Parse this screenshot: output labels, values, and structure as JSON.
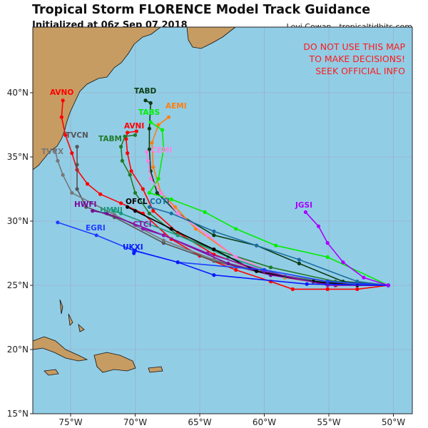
{
  "header": {
    "title": "Tropical Storm FLORENCE Model Track Guidance",
    "subtitle": "Initialized at 06z Sep 07 2018",
    "credit": "Levi Cowan - tropicaltidbits.com"
  },
  "warning": [
    "DO NOT USE THIS MAP",
    "TO MAKE DECISIONS!",
    "SEEK OFFICIAL INFO"
  ],
  "colors": {
    "ocean": "#92cde6",
    "land": "#c69c62",
    "warning": "#ff1a1a"
  },
  "axes": {
    "lon_ticks": [
      {
        "v": -75,
        "label": "75°W"
      },
      {
        "v": -70,
        "label": "70°W"
      },
      {
        "v": -65,
        "label": "65°W"
      },
      {
        "v": -60,
        "label": "60°W"
      },
      {
        "v": -55,
        "label": "55°W"
      },
      {
        "v": -50,
        "label": "50°W"
      }
    ],
    "lat_ticks": [
      {
        "v": 40,
        "label": "40°N"
      },
      {
        "v": 35,
        "label": "35°N"
      },
      {
        "v": 30,
        "label": "30°N"
      },
      {
        "v": 25,
        "label": "25°N"
      },
      {
        "v": 20,
        "label": "20°N"
      },
      {
        "v": 15,
        "label": "15°N"
      }
    ],
    "lon_range": [
      -78,
      -48.4
    ],
    "lat_range": [
      14.9,
      45.1
    ]
  },
  "tracks": [
    {
      "name": "AVNO",
      "color": "#ff0000",
      "pts": [
        [
          -50.4,
          25.0
        ],
        [
          -52.8,
          24.7
        ],
        [
          -55.1,
          24.7
        ],
        [
          -57.8,
          24.7
        ],
        [
          -59.5,
          25.3
        ],
        [
          -62.2,
          26.2
        ],
        [
          -65.0,
          27.3
        ],
        [
          -67.2,
          28.6
        ],
        [
          -69.4,
          30.6
        ],
        [
          -71.1,
          31.4
        ],
        [
          -72.7,
          32.1
        ],
        [
          -73.7,
          32.9
        ],
        [
          -74.5,
          34.0
        ],
        [
          -74.9,
          35.3
        ],
        [
          -75.4,
          36.7
        ],
        [
          -75.7,
          38.1
        ],
        [
          -75.6,
          39.4
        ]
      ]
    },
    {
      "name": "AVNI",
      "color": "#ff0000",
      "pts": [
        [
          -50.4,
          25.0
        ],
        [
          -55.1,
          25.3
        ],
        [
          -59.5,
          25.8
        ],
        [
          -63.9,
          27.4
        ],
        [
          -66.7,
          29.1
        ],
        [
          -68.6,
          30.8
        ],
        [
          -69.4,
          32.5
        ],
        [
          -70.3,
          33.9
        ],
        [
          -70.6,
          35.3
        ],
        [
          -70.7,
          36.4
        ],
        [
          -70.6,
          36.9
        ],
        [
          -69.9,
          37.0
        ]
      ]
    },
    {
      "name": "TABD",
      "color": "#0b3d12",
      "pts": [
        [
          -50.4,
          25.0
        ],
        [
          -53.9,
          25.3
        ],
        [
          -57.3,
          26.7
        ],
        [
          -60.6,
          28.1
        ],
        [
          -63.9,
          28.9
        ],
        [
          -66.7,
          30.6
        ],
        [
          -68.3,
          32.2
        ],
        [
          -68.8,
          33.9
        ],
        [
          -68.9,
          35.6
        ],
        [
          -68.9,
          37.2
        ],
        [
          -68.8,
          39.2
        ],
        [
          -69.2,
          39.4
        ]
      ]
    },
    {
      "name": "AEMI",
      "color": "#ff7f0e",
      "pts": [
        [
          -50.4,
          25.0
        ],
        [
          -54.4,
          25.0
        ],
        [
          -58.4,
          25.6
        ],
        [
          -62.2,
          27.2
        ],
        [
          -65.3,
          29.4
        ],
        [
          -66.9,
          31.1
        ],
        [
          -68.0,
          32.2
        ],
        [
          -68.6,
          34.2
        ],
        [
          -68.7,
          36.1
        ],
        [
          -68.2,
          37.5
        ],
        [
          -67.4,
          38.1
        ]
      ]
    },
    {
      "name": "TABS",
      "color": "#00ee00",
      "pts": [
        [
          -50.4,
          25.0
        ],
        [
          -55.1,
          27.2
        ],
        [
          -59.1,
          28.1
        ],
        [
          -62.2,
          29.4
        ],
        [
          -64.6,
          30.7
        ],
        [
          -67.2,
          31.7
        ],
        [
          -68.9,
          32.2
        ],
        [
          -68.2,
          33.3
        ],
        [
          -67.8,
          35.6
        ],
        [
          -67.9,
          37.1
        ],
        [
          -68.8,
          37.7
        ]
      ]
    },
    {
      "name": "TABM",
      "color": "#1f7a2a",
      "pts": [
        [
          -50.4,
          25.0
        ],
        [
          -54.5,
          25.3
        ],
        [
          -59.5,
          26.4
        ],
        [
          -63.9,
          27.8
        ],
        [
          -66.7,
          28.9
        ],
        [
          -68.9,
          30.6
        ],
        [
          -70.0,
          32.2
        ],
        [
          -70.4,
          33.6
        ],
        [
          -71.0,
          34.7
        ],
        [
          -71.1,
          35.8
        ],
        [
          -70.8,
          36.6
        ],
        [
          -70.0,
          36.7
        ]
      ]
    },
    {
      "name": "CEMI",
      "color": "#ff80e6",
      "pts": [
        [
          -50.4,
          25.0
        ],
        [
          -54.5,
          25.1
        ],
        [
          -58.9,
          25.8
        ],
        [
          -62.2,
          27.2
        ],
        [
          -64.4,
          28.9
        ],
        [
          -66.7,
          30.6
        ],
        [
          -68.0,
          32.2
        ],
        [
          -68.8,
          33.3
        ],
        [
          -69.0,
          34.7
        ],
        [
          -69.1,
          35.4
        ]
      ]
    },
    {
      "name": "TVCN",
      "color": "#555555",
      "pts": [
        [
          -50.4,
          25.0
        ],
        [
          -54.5,
          25.1
        ],
        [
          -59.5,
          25.8
        ],
        [
          -63.9,
          26.9
        ],
        [
          -67.8,
          28.3
        ],
        [
          -71.6,
          30.3
        ],
        [
          -73.8,
          31.1
        ],
        [
          -74.5,
          32.5
        ],
        [
          -74.5,
          34.4
        ],
        [
          -74.5,
          35.8
        ]
      ]
    },
    {
      "name": "TVCX",
      "color": "#777777",
      "pts": [
        [
          -50.4,
          25.0
        ],
        [
          -54.5,
          25.2
        ],
        [
          -59.5,
          25.9
        ],
        [
          -63.9,
          27.0
        ],
        [
          -67.8,
          28.5
        ],
        [
          -71.6,
          30.5
        ],
        [
          -74.9,
          32.2
        ],
        [
          -75.6,
          33.6
        ],
        [
          -76.0,
          34.7
        ],
        [
          -76.2,
          35.5
        ]
      ]
    },
    {
      "name": "HWFI",
      "color": "#7a0a9a",
      "pts": [
        [
          -50.4,
          25.0
        ],
        [
          -54.5,
          25.0
        ],
        [
          -59.5,
          25.8
        ],
        [
          -62.8,
          26.7
        ],
        [
          -67.8,
          28.9
        ],
        [
          -72.2,
          30.6
        ],
        [
          -73.3,
          30.8
        ]
      ]
    },
    {
      "name": "HMNI",
      "color": "#1a9a7a",
      "pts": [
        [
          -50.4,
          25.0
        ],
        [
          -54.5,
          25.1
        ],
        [
          -58.4,
          25.7
        ],
        [
          -62.8,
          27.2
        ],
        [
          -66.7,
          28.9
        ],
        [
          -71.1,
          30.6
        ],
        [
          -71.7,
          30.8
        ]
      ]
    },
    {
      "name": "OFCL",
      "color": "#000000",
      "pts": [
        [
          -50.4,
          25.0
        ],
        [
          -52.8,
          25.0
        ],
        [
          -56.2,
          25.3
        ],
        [
          -60.6,
          26.1
        ],
        [
          -63.9,
          27.8
        ],
        [
          -67.2,
          29.4
        ],
        [
          -70.0,
          30.8
        ],
        [
          -70.6,
          31.1
        ]
      ]
    },
    {
      "name": "COTI",
      "color": "#1a6fa0",
      "pts": [
        [
          -50.4,
          25.0
        ],
        [
          -52.8,
          25.3
        ],
        [
          -57.3,
          27.0
        ],
        [
          -60.6,
          28.1
        ],
        [
          -63.9,
          29.2
        ],
        [
          -67.2,
          30.6
        ],
        [
          -68.9,
          31.1
        ]
      ]
    },
    {
      "name": "CTCI",
      "color": "#8a1ab0",
      "pts": [
        [
          -50.4,
          25.0
        ],
        [
          -55.1,
          25.0
        ],
        [
          -60.0,
          26.1
        ],
        [
          -64.4,
          27.5
        ],
        [
          -67.8,
          28.9
        ],
        [
          -69.4,
          29.4
        ]
      ]
    },
    {
      "name": "EGRI",
      "color": "#1f3fff",
      "pts": [
        [
          -50.4,
          25.0
        ],
        [
          -55.1,
          25.3
        ],
        [
          -60.0,
          26.2
        ],
        [
          -66.7,
          26.8
        ],
        [
          -70.1,
          27.7
        ],
        [
          -73.0,
          28.9
        ],
        [
          -76.0,
          29.9
        ]
      ]
    },
    {
      "name": "UKXI",
      "color": "#0a1aff",
      "pts": [
        [
          -50.4,
          25.0
        ],
        [
          -56.7,
          25.1
        ],
        [
          -63.9,
          25.8
        ],
        [
          -66.7,
          26.8
        ],
        [
          -70.0,
          27.7
        ],
        [
          -70.1,
          27.5
        ]
      ]
    },
    {
      "name": "JGSI",
      "color": "#aa00ff",
      "pts": [
        [
          -50.4,
          25.0
        ],
        [
          -52.3,
          25.6
        ],
        [
          -53.9,
          26.8
        ],
        [
          -55.1,
          28.3
        ],
        [
          -55.8,
          29.6
        ],
        [
          -56.8,
          30.7
        ]
      ]
    }
  ]
}
